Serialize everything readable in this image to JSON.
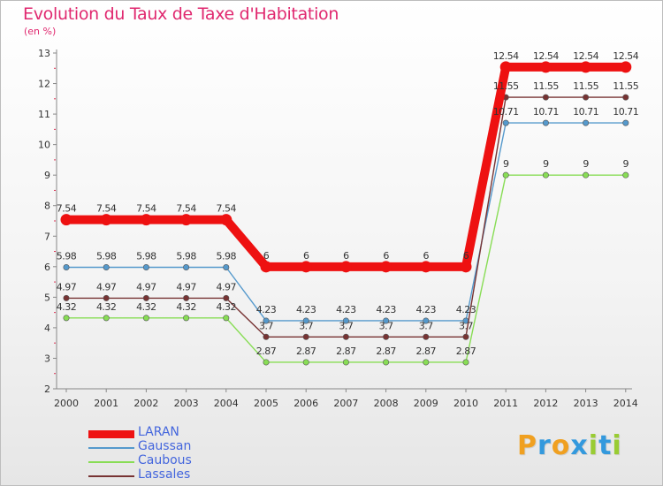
{
  "chart_data": {
    "type": "line",
    "title": "Evolution du Taux de Taxe d'Habitation",
    "ylabel": "(en %)",
    "xlabel": "",
    "x": [
      "2000",
      "2001",
      "2002",
      "2003",
      "2004",
      "2005",
      "2006",
      "2007",
      "2008",
      "2009",
      "2010",
      "2011",
      "2012",
      "2013",
      "2014"
    ],
    "ylim": [
      2,
      13
    ],
    "yticks": [
      2,
      3,
      4,
      5,
      6,
      7,
      8,
      9,
      10,
      11,
      12,
      13
    ],
    "grid": false,
    "legend_position": "bottom-left",
    "series": [
      {
        "name": "LARAN",
        "color": "#ee1111",
        "values": [
          7.54,
          7.54,
          7.54,
          7.54,
          7.54,
          6,
          6,
          6,
          6,
          6,
          6,
          12.54,
          12.54,
          12.54,
          12.54
        ],
        "labels": [
          "7.54",
          "7.54",
          "7.54",
          "7.54",
          "7.54",
          "6",
          "6",
          "6",
          "6",
          "6",
          "6",
          "12.54",
          "12.54",
          "12.54",
          "12.54"
        ]
      },
      {
        "name": "Gaussan",
        "color": "#5599cc",
        "values": [
          5.98,
          5.98,
          5.98,
          5.98,
          5.98,
          4.23,
          4.23,
          4.23,
          4.23,
          4.23,
          4.23,
          10.71,
          10.71,
          10.71,
          10.71
        ],
        "labels": [
          "5.98",
          "5.98",
          "5.98",
          "5.98",
          "5.98",
          "4.23",
          "4.23",
          "4.23",
          "4.23",
          "4.23",
          "4.23",
          "10.71",
          "10.71",
          "10.71",
          "10.71"
        ]
      },
      {
        "name": "Caubous",
        "color": "#88dd55",
        "values": [
          4.32,
          4.32,
          4.32,
          4.32,
          4.32,
          2.87,
          2.87,
          2.87,
          2.87,
          2.87,
          2.87,
          9,
          9,
          9,
          9
        ],
        "labels": [
          "4.32",
          "4.32",
          "4.32",
          "4.32",
          "4.32",
          "2.87",
          "2.87",
          "2.87",
          "2.87",
          "2.87",
          "2.87",
          "9",
          "9",
          "9",
          "9"
        ]
      },
      {
        "name": "Lassales",
        "color": "#773333",
        "values": [
          4.97,
          4.97,
          4.97,
          4.97,
          4.97,
          3.7,
          3.7,
          3.7,
          3.7,
          3.7,
          3.7,
          11.55,
          11.55,
          11.55,
          11.55
        ],
        "labels": [
          "4.97",
          "4.97",
          "4.97",
          "4.97",
          "4.97",
          "3.7",
          "3.7",
          "3.7",
          "3.7",
          "3.7",
          "3.7",
          "11.55",
          "11.55",
          "11.55",
          "11.55"
        ]
      }
    ]
  },
  "branding": {
    "logo_letters": [
      "P",
      "r",
      "o",
      "x",
      "i",
      "t",
      "i"
    ],
    "logo_colors": [
      "#f0a020",
      "#3399dd",
      "#f0a020",
      "#3399dd",
      "#99cc33",
      "#3399dd",
      "#99cc33"
    ]
  }
}
